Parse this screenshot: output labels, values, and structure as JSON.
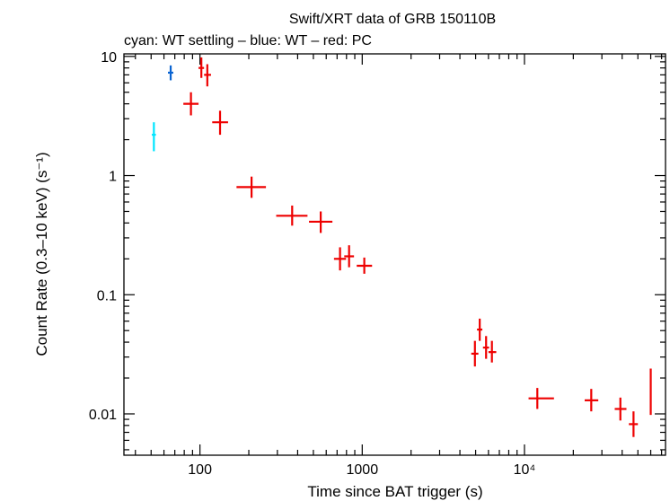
{
  "chart_data": {
    "type": "scatter",
    "title": "Swift/XRT data of GRB 150110B",
    "subtitle": "cyan: WT settling – blue: WT – red: PC",
    "xlabel": "Time since BAT trigger (s)",
    "ylabel": "Count Rate (0.3–10 keV) (s⁻¹)",
    "xscale": "log",
    "yscale": "log",
    "xlim": [
      34,
      74000
    ],
    "ylim": [
      0.0045,
      10.5
    ],
    "x_ticks": [
      {
        "value": 100,
        "label": "100"
      },
      {
        "value": 1000,
        "label": "1000"
      },
      {
        "value": 10000,
        "label": "10⁴"
      }
    ],
    "y_ticks": [
      {
        "value": 10,
        "label": "10"
      },
      {
        "value": 1,
        "label": "1"
      },
      {
        "value": 0.1,
        "label": "0.1"
      },
      {
        "value": 0.01,
        "label": "0.01"
      }
    ],
    "grid": false,
    "legend": "none",
    "series": [
      {
        "color": "#00e5ff",
        "points": [
          {
            "x": 52,
            "xlo": 50.5,
            "xhi": 53.5,
            "y": 2.2,
            "ylo": 1.6,
            "yhi": 2.8
          }
        ]
      },
      {
        "color": "#0a64d2",
        "points": [
          {
            "x": 66,
            "xlo": 63.5,
            "xhi": 68.5,
            "y": 7.3,
            "ylo": 6.3,
            "yhi": 8.4
          }
        ]
      },
      {
        "color": "#ee0000",
        "points": [
          {
            "x": 88,
            "xlo": 79,
            "xhi": 98,
            "y": 4.0,
            "ylo": 3.2,
            "yhi": 5.0
          },
          {
            "x": 102,
            "xlo": 98,
            "xhi": 106,
            "y": 8.0,
            "ylo": 6.6,
            "yhi": 9.8
          },
          {
            "x": 111,
            "xlo": 106,
            "xhi": 117,
            "y": 7.0,
            "ylo": 5.6,
            "yhi": 8.6
          },
          {
            "x": 133,
            "xlo": 119,
            "xhi": 149,
            "y": 2.8,
            "ylo": 2.2,
            "yhi": 3.5
          },
          {
            "x": 208,
            "xlo": 168,
            "xhi": 255,
            "y": 0.8,
            "ylo": 0.65,
            "yhi": 0.98
          },
          {
            "x": 370,
            "xlo": 295,
            "xhi": 460,
            "y": 0.46,
            "ylo": 0.38,
            "yhi": 0.56
          },
          {
            "x": 555,
            "xlo": 470,
            "xhi": 655,
            "y": 0.41,
            "ylo": 0.33,
            "yhi": 0.5
          },
          {
            "x": 730,
            "xlo": 670,
            "xhi": 795,
            "y": 0.2,
            "ylo": 0.16,
            "yhi": 0.25
          },
          {
            "x": 830,
            "xlo": 775,
            "xhi": 890,
            "y": 0.21,
            "ylo": 0.17,
            "yhi": 0.26
          },
          {
            "x": 1030,
            "xlo": 925,
            "xhi": 1150,
            "y": 0.175,
            "ylo": 0.15,
            "yhi": 0.205
          },
          {
            "x": 4950,
            "xlo": 4700,
            "xhi": 5200,
            "y": 0.032,
            "ylo": 0.025,
            "yhi": 0.041
          },
          {
            "x": 5300,
            "xlo": 5100,
            "xhi": 5500,
            "y": 0.051,
            "ylo": 0.041,
            "yhi": 0.063
          },
          {
            "x": 5800,
            "xlo": 5550,
            "xhi": 6050,
            "y": 0.036,
            "ylo": 0.029,
            "yhi": 0.045
          },
          {
            "x": 6300,
            "xlo": 6000,
            "xhi": 6700,
            "y": 0.033,
            "ylo": 0.027,
            "yhi": 0.041
          },
          {
            "x": 12000,
            "xlo": 10600,
            "xhi": 15200,
            "y": 0.0135,
            "ylo": 0.011,
            "yhi": 0.0165
          },
          {
            "x": 25800,
            "xlo": 23500,
            "xhi": 28500,
            "y": 0.013,
            "ylo": 0.0105,
            "yhi": 0.0162
          },
          {
            "x": 39000,
            "xlo": 36000,
            "xhi": 42500,
            "y": 0.011,
            "ylo": 0.0088,
            "yhi": 0.0137
          },
          {
            "x": 47000,
            "xlo": 44000,
            "xhi": 50000,
            "y": 0.0082,
            "ylo": 0.0064,
            "yhi": 0.0105
          },
          {
            "x": 60000,
            "xlo": 60000,
            "xhi": 60000,
            "y": 0.014,
            "ylo": 0.0098,
            "yhi": 0.024
          }
        ]
      }
    ]
  }
}
